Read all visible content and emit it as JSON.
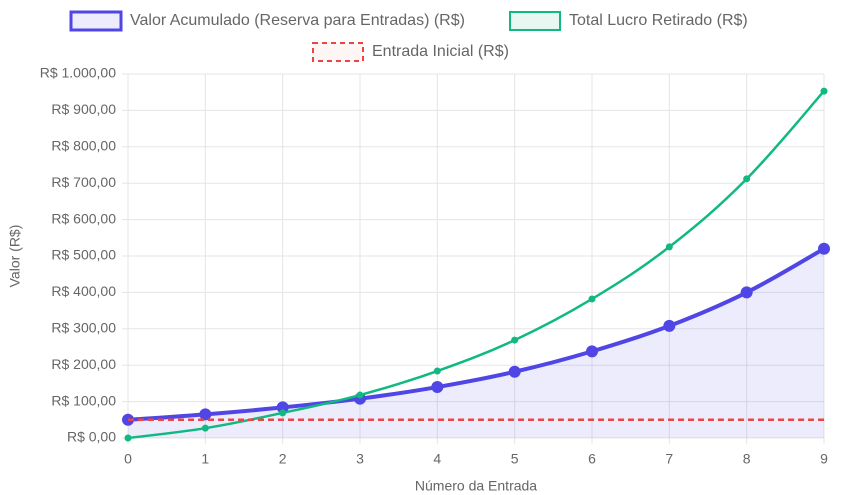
{
  "chart_data": {
    "type": "line",
    "x_label": "Número da Entrada",
    "y_label": "Valor (R$)",
    "x": [
      0,
      1,
      2,
      3,
      4,
      5,
      6,
      7,
      8,
      9
    ],
    "xlim": [
      0,
      9
    ],
    "xticks": [
      0,
      1,
      2,
      3,
      4,
      5,
      6,
      7,
      8,
      9
    ],
    "ylim": [
      0,
      1000
    ],
    "yticks": [
      {
        "value": 0,
        "label": "R$ 0,00"
      },
      {
        "value": 100,
        "label": "R$ 100,00"
      },
      {
        "value": 200,
        "label": "R$ 200,00"
      },
      {
        "value": 300,
        "label": "R$ 300,00"
      },
      {
        "value": 400,
        "label": "R$ 400,00"
      },
      {
        "value": 500,
        "label": "R$ 500,00"
      },
      {
        "value": 600,
        "label": "R$ 600,00"
      },
      {
        "value": 700,
        "label": "R$ 700,00"
      },
      {
        "value": 800,
        "label": "R$ 800,00"
      },
      {
        "value": 900,
        "label": "R$ 900,00"
      },
      {
        "value": 1000,
        "label": "R$ 1.000,00"
      }
    ],
    "grid": true,
    "series": [
      {
        "name": "Valor Acumulado (Reserva para Entradas) (R$)",
        "color": "#4f46e5",
        "values": [
          50,
          65,
          84,
          108,
          140,
          182,
          238,
          308,
          400,
          520
        ]
      },
      {
        "name": "Total Lucro Retirado (R$)",
        "color": "#10b981",
        "values": [
          0,
          27,
          69,
          118,
          184,
          269,
          382,
          525,
          712,
          953
        ]
      },
      {
        "name": "Entrada Inicial (R$)",
        "color": "#ef4444",
        "values": [
          50,
          50,
          50,
          50,
          50,
          50,
          50,
          50,
          50,
          50
        ]
      }
    ]
  }
}
